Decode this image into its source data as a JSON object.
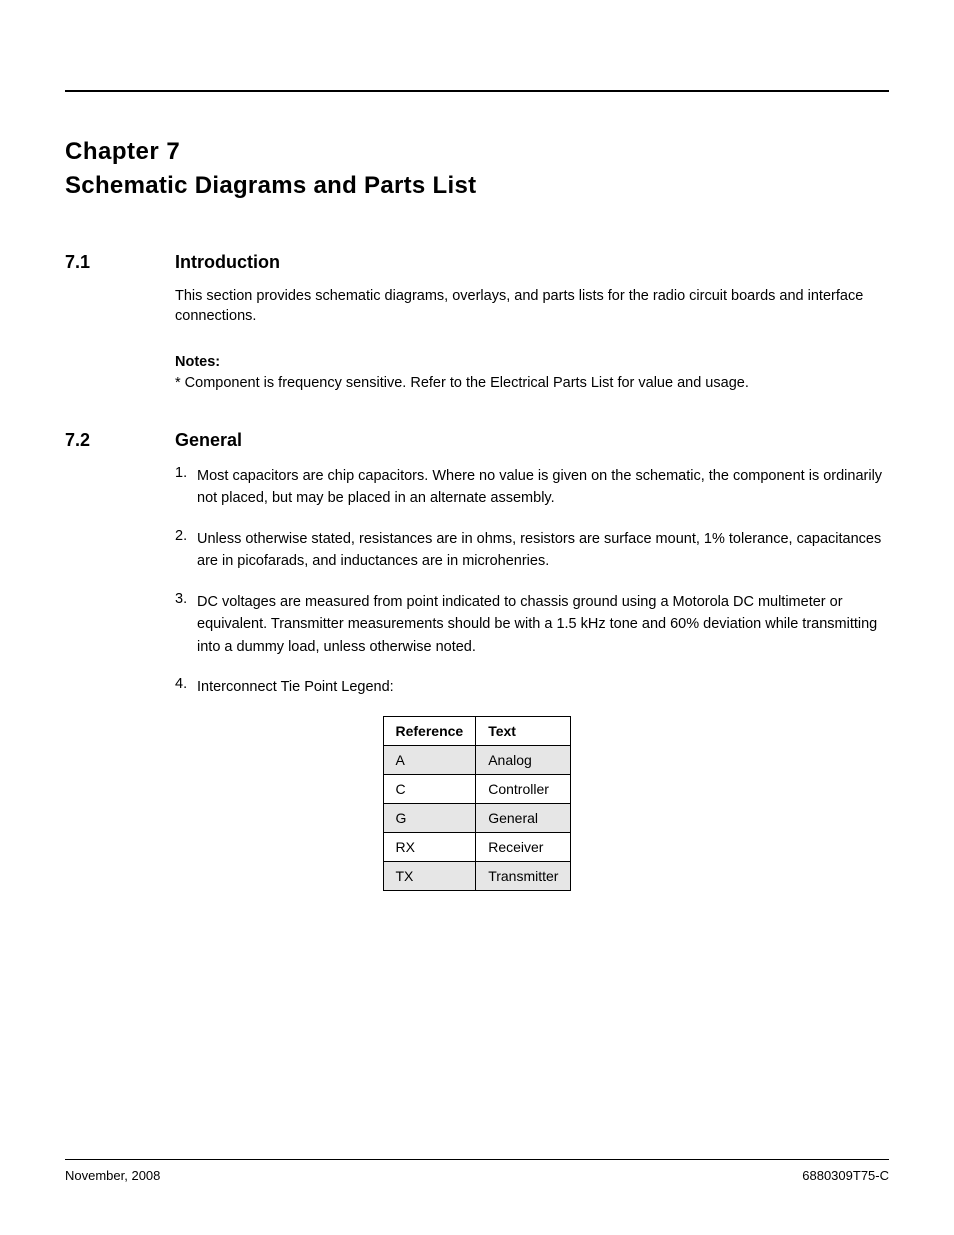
{
  "chapter": {
    "label": "Chapter 7",
    "title": "Schematic Diagrams and Parts List"
  },
  "section1": {
    "num": "7.1",
    "title": "Introduction",
    "body": "This section provides schematic diagrams, overlays, and parts lists for the radio circuit boards and interface connections."
  },
  "notes": {
    "label": "Notes:",
    "text": "* Component is frequency sensitive. Refer to the Electrical Parts List for value and usage."
  },
  "section2": {
    "num": "7.2",
    "title": "General"
  },
  "items": [
    {
      "n": "1.",
      "text": "Most capacitors are chip capacitors. Where no value is given on the schematic, the component is ordinarily not placed, but may be placed in an alternate assembly."
    },
    {
      "n": "2.",
      "text": "Unless otherwise stated, resistances are in ohms, resistors are surface mount, 1% tolerance, capacitances are in picofarads, and inductances are in microhenries."
    },
    {
      "n": "3.",
      "text": "DC voltages are measured from point indicated to chassis ground using a Motorola DC multimeter or equivalent. Transmitter measurements should be with a 1.5 kHz tone and 60% deviation while transmitting into a dummy load, unless otherwise noted."
    },
    {
      "n": "4.",
      "text": "Interconnect Tie Point Legend:"
    }
  ],
  "table": {
    "headers": [
      "Reference",
      "Text"
    ],
    "rows": [
      [
        "A",
        "Analog"
      ],
      [
        "C",
        "Controller"
      ],
      [
        "G",
        "General"
      ],
      [
        "RX",
        "Receiver"
      ],
      [
        "TX",
        "Transmitter"
      ]
    ]
  },
  "footer": {
    "left": "November, 2008",
    "right": "6880309T75-C"
  }
}
